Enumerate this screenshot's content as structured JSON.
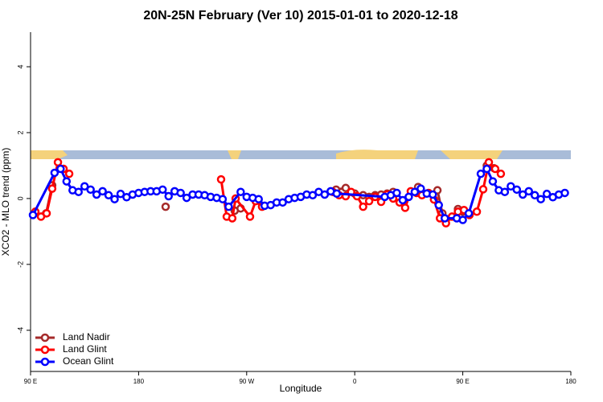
{
  "chart_data": {
    "type": "line",
    "title": "20N-25N February (Ver 10)   2015-01-01 to 2020-12-18",
    "x_label": "Longitude",
    "y_label": "XCO2 - MLO trend (ppm)",
    "xlim": [
      90,
      540
    ],
    "ylim": [
      -5.25,
      5.05
    ],
    "xticks": [
      {
        "value": 90,
        "label": "90 E"
      },
      {
        "value": 180,
        "label": "180"
      },
      {
        "value": 270,
        "label": "90 W"
      },
      {
        "value": 360,
        "label": "0"
      },
      {
        "value": 450,
        "label": "90 E"
      },
      {
        "value": 540,
        "label": "180"
      }
    ],
    "yticks": [
      -4,
      -2,
      0,
      2,
      4
    ],
    "legend": "bottomleft",
    "series": [
      {
        "name": "Land Nadir",
        "color": "#a52a2a",
        "x": [
          103,
          108,
          150,
          202.5,
          230,
          260,
          265,
          300,
          344.5,
          352.5,
          360,
          367,
          372,
          377,
          382,
          387,
          392,
          400,
          412.8,
          420,
          428.9,
          433,
          440,
          446,
          450,
          460,
          470,
          476
        ],
        "values": [
          -0.45,
          0.4,
          null,
          -0.25,
          null,
          -0.37,
          -0.3,
          null,
          0.27,
          0.32,
          0.15,
          0.1,
          0.05,
          0.1,
          0.12,
          0.15,
          0.2,
          null,
          0.35,
          null,
          0.25,
          -0.45,
          null,
          -0.32,
          -0.4,
          null,
          1.0,
          0.92
        ]
      },
      {
        "name": "Land Glint",
        "color": "#ff0000",
        "x": [
          94,
          98.7,
          103.4,
          108,
          112.8,
          117.5,
          122.2,
          185,
          248.7,
          253.4,
          258,
          260.8,
          272.8,
          277.5,
          282.8,
          310,
          341.8,
          347,
          352.5,
          357,
          361.9,
          367,
          372,
          377,
          382,
          387,
          392,
          397.4,
          402,
          406.7,
          411.4,
          416,
          421.5,
          426,
          431,
          436,
          441,
          446,
          451,
          455.6,
          461.7,
          467,
          471.7,
          477,
          481.7
        ],
        "values": [
          -0.4,
          -0.55,
          -0.45,
          0.3,
          1.1,
          0.9,
          0.75,
          null,
          0.58,
          -0.55,
          -0.6,
          0,
          -0.55,
          -0.08,
          -0.25,
          null,
          0.2,
          0.1,
          0.07,
          0.2,
          0.07,
          -0.25,
          -0.08,
          0.05,
          -0.1,
          0.12,
          0,
          -0.12,
          -0.28,
          0.22,
          0.17,
          0.1,
          0.17,
          -0.03,
          -0.6,
          -0.75,
          -0.55,
          -0.4,
          -0.35,
          -0.5,
          -0.4,
          0.28,
          1.1,
          0.9,
          0.75
        ]
      },
      {
        "name": "Ocean Glint",
        "color": "#0000ff",
        "x": [
          92,
          110,
          115,
          120,
          125,
          130,
          135,
          140,
          145,
          150,
          155,
          160,
          165,
          170,
          175,
          180,
          185,
          190,
          195,
          200,
          205,
          210,
          215,
          220,
          225,
          230,
          235,
          240,
          245,
          250,
          255,
          265,
          270,
          275,
          280,
          285,
          290,
          295,
          300,
          305,
          310,
          315,
          320,
          325,
          330,
          335,
          340,
          345,
          385,
          390,
          395,
          400,
          405,
          410,
          415,
          420,
          425,
          430,
          435,
          445,
          450,
          455,
          465,
          470,
          475,
          480,
          485,
          490,
          495,
          500,
          505,
          510,
          515,
          520,
          525,
          530,
          535
        ],
        "values": [
          -0.5,
          0.78,
          0.9,
          0.52,
          0.25,
          0.2,
          0.37,
          0.27,
          0.12,
          0.22,
          0.1,
          -0.02,
          0.14,
          0.04,
          0.12,
          0.17,
          0.2,
          0.22,
          0.22,
          0.27,
          0.07,
          0.22,
          0.17,
          0.02,
          0.12,
          0.12,
          0.1,
          0.05,
          0.02,
          -0.02,
          -0.25,
          0.2,
          0.05,
          0.02,
          -0.02,
          -0.22,
          -0.2,
          -0.12,
          -0.12,
          -0.02,
          0.02,
          0.05,
          0.12,
          0.1,
          0.2,
          0.12,
          0.22,
          0.15,
          0.05,
          0.1,
          0.17,
          -0.05,
          0.05,
          0.2,
          0.3,
          0.15,
          0.12,
          -0.2,
          -0.6,
          -0.6,
          -0.65,
          -0.45,
          0.75,
          0.9,
          0.52,
          0.25,
          0.2,
          0.37,
          0.27,
          0.12,
          0.22,
          0.1,
          -0.02,
          0.14,
          0.04,
          0.12,
          0.17
        ]
      }
    ]
  }
}
